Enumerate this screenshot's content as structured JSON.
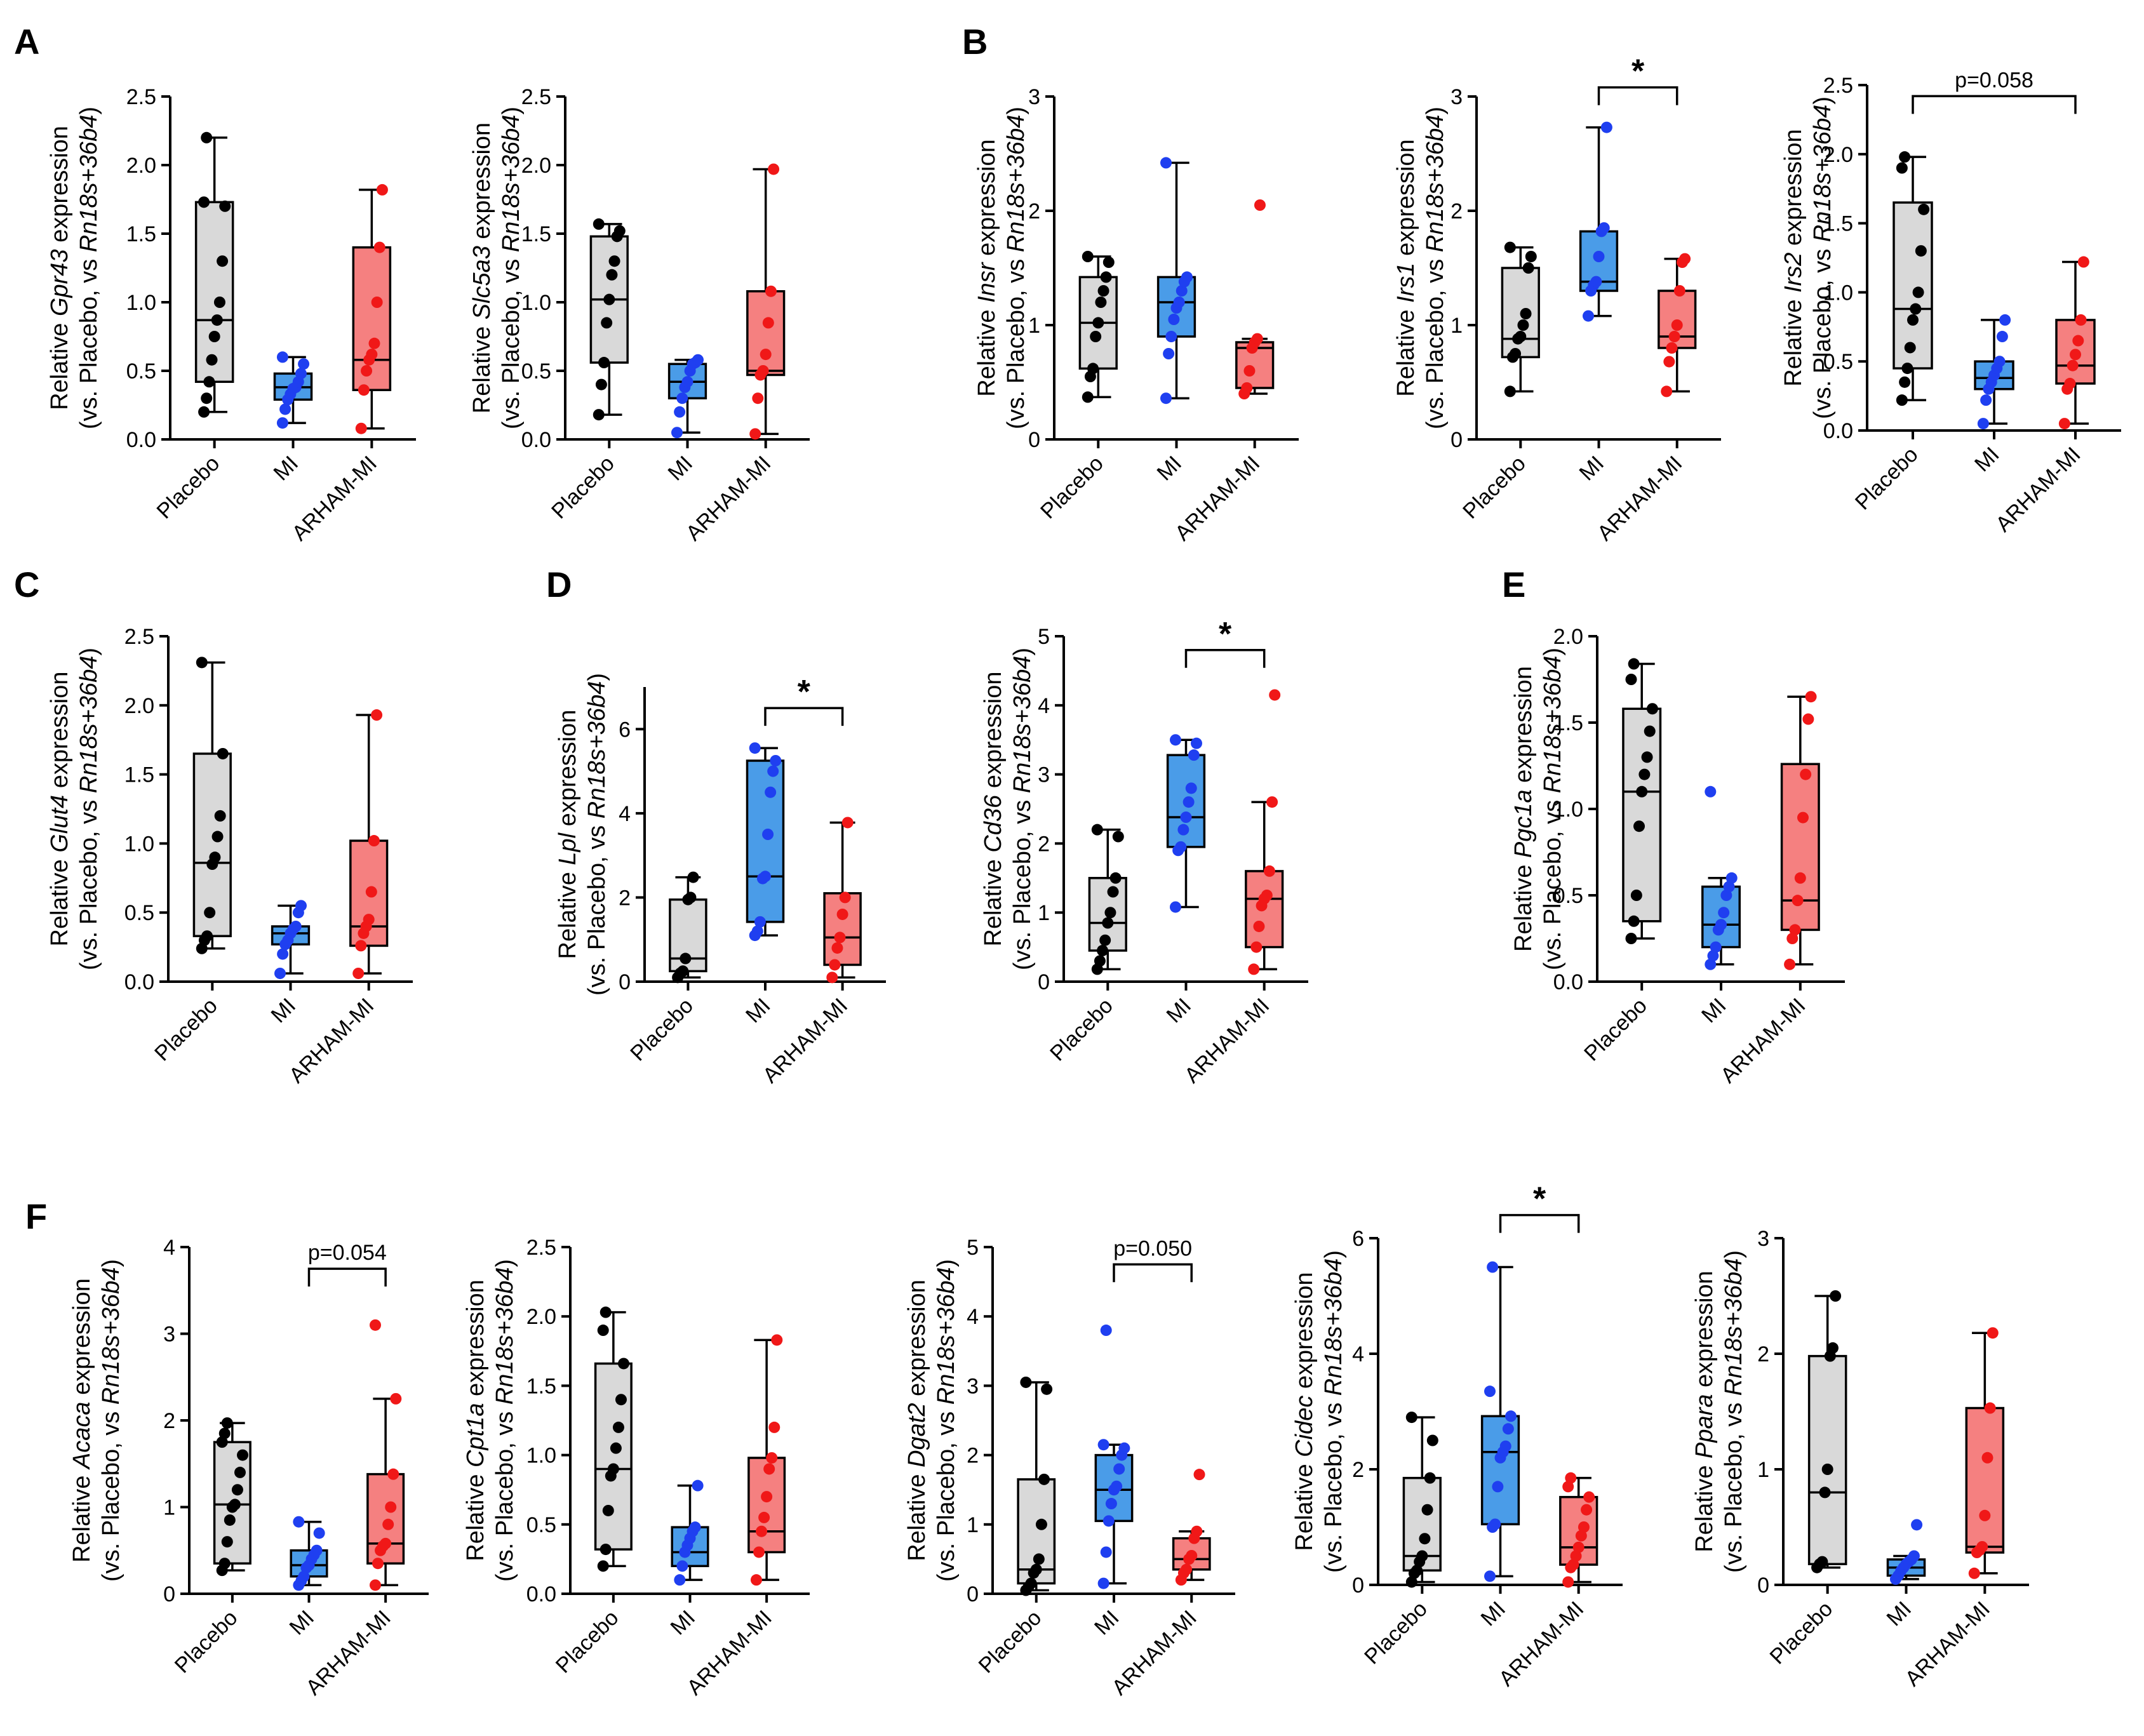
{
  "groups": [
    "Placebo",
    "MI",
    "ARHAM-MI"
  ],
  "colors": {
    "Placebo": "#000000",
    "MI": "#1f3ff0",
    "ARHAM-MI": "#f01818",
    "box_Placebo": "#d9d9d9",
    "box_MI": "#4a9ce8",
    "box_ARHAM-MI": "#f58080"
  },
  "ylabel_line1_prefix": "Relative ",
  "ylabel_line1_suffix": " expression",
  "ylabel_line2_prefix": "(vs. Placebo, vs ",
  "ylabel_line2_italic": "Rn18s+36b4",
  "ylabel_line2_suffix": ")",
  "chart_data": [
    {
      "panel": "A",
      "type": "box",
      "gene": "Gpr43",
      "ylim": [
        0,
        2.5
      ],
      "yticks": [
        "0.0",
        "0.5",
        "1.0",
        "1.5",
        "2.0",
        "2.5"
      ],
      "boxes": [
        {
          "min": 0.2,
          "q1": 0.42,
          "median": 0.87,
          "q3": 1.73,
          "max": 2.2
        },
        {
          "min": 0.12,
          "q1": 0.29,
          "median": 0.38,
          "q3": 0.48,
          "max": 0.6
        },
        {
          "min": 0.08,
          "q1": 0.36,
          "median": 0.58,
          "q3": 1.4,
          "max": 1.82
        }
      ],
      "points": [
        [
          0.2,
          0.3,
          0.42,
          0.58,
          0.75,
          0.87,
          1.0,
          1.3,
          1.7,
          1.73,
          2.2
        ],
        [
          0.12,
          0.22,
          0.29,
          0.33,
          0.37,
          0.38,
          0.42,
          0.48,
          0.55,
          0.6
        ],
        [
          0.08,
          0.36,
          0.5,
          0.58,
          0.62,
          0.7,
          1.0,
          1.4,
          1.82
        ]
      ],
      "sig": null
    },
    {
      "panel": "",
      "type": "box",
      "gene": "Slc5a3",
      "ylim": [
        0,
        2.5
      ],
      "yticks": [
        "0.0",
        "0.5",
        "1.0",
        "1.5",
        "2.0",
        "2.5"
      ],
      "boxes": [
        {
          "min": 0.18,
          "q1": 0.56,
          "median": 1.02,
          "q3": 1.48,
          "max": 1.57
        },
        {
          "min": 0.05,
          "q1": 0.3,
          "median": 0.42,
          "q3": 0.55,
          "max": 0.58
        },
        {
          "min": 0.04,
          "q1": 0.47,
          "median": 0.5,
          "q3": 1.08,
          "max": 1.97
        }
      ],
      "points": [
        [
          0.18,
          0.4,
          0.56,
          0.85,
          1.02,
          1.2,
          1.3,
          1.48,
          1.52,
          1.57
        ],
        [
          0.05,
          0.2,
          0.3,
          0.38,
          0.42,
          0.5,
          0.55,
          0.56,
          0.58
        ],
        [
          0.04,
          0.3,
          0.47,
          0.5,
          0.62,
          0.85,
          1.08,
          1.97
        ]
      ],
      "sig": null
    },
    {
      "panel": "B",
      "type": "box",
      "gene": "Insr",
      "ylim": [
        0,
        3
      ],
      "yticks": [
        "0",
        "1",
        "2",
        "3"
      ],
      "boxes": [
        {
          "min": 0.37,
          "q1": 0.62,
          "median": 1.02,
          "q3": 1.42,
          "max": 1.6
        },
        {
          "min": 0.36,
          "q1": 0.9,
          "median": 1.2,
          "q3": 1.42,
          "max": 2.42
        },
        {
          "min": 0.4,
          "q1": 0.45,
          "median": 0.8,
          "q3": 0.85,
          "max": 0.88
        }
      ],
      "points": [
        [
          0.37,
          0.55,
          0.62,
          0.9,
          1.02,
          1.2,
          1.3,
          1.42,
          1.55,
          1.6
        ],
        [
          0.36,
          0.75,
          0.9,
          1.05,
          1.15,
          1.2,
          1.3,
          1.38,
          1.42,
          2.42
        ],
        [
          0.4,
          0.45,
          0.6,
          0.8,
          0.85,
          0.88,
          2.05
        ]
      ],
      "sig": null
    },
    {
      "panel": "",
      "type": "box",
      "gene": "Irs1",
      "ylim": [
        0,
        3
      ],
      "yticks": [
        "0",
        "1",
        "2",
        "3"
      ],
      "boxes": [
        {
          "min": 0.42,
          "q1": 0.72,
          "median": 0.88,
          "q3": 1.5,
          "max": 1.68
        },
        {
          "min": 1.08,
          "q1": 1.3,
          "median": 1.38,
          "q3": 1.82,
          "max": 2.73
        },
        {
          "min": 0.42,
          "q1": 0.8,
          "median": 0.9,
          "q3": 1.3,
          "max": 1.58
        }
      ],
      "points": [
        [
          0.42,
          0.72,
          0.75,
          0.88,
          0.9,
          1.0,
          1.1,
          1.5,
          1.6,
          1.68
        ],
        [
          1.08,
          1.3,
          1.35,
          1.38,
          1.6,
          1.82,
          1.85,
          2.73
        ],
        [
          0.42,
          0.68,
          0.8,
          0.9,
          1.0,
          1.3,
          1.55,
          1.58
        ]
      ],
      "sig": {
        "from": 1,
        "to": 2,
        "label": "*",
        "y": 3.08
      }
    },
    {
      "panel": "",
      "type": "box",
      "gene": "Irs2",
      "ylim": [
        0,
        2.5
      ],
      "yticks": [
        "0.0",
        "0.5",
        "1.0",
        "1.5",
        "2.0",
        "2.5"
      ],
      "boxes": [
        {
          "min": 0.22,
          "q1": 0.45,
          "median": 0.88,
          "q3": 1.65,
          "max": 1.98
        },
        {
          "min": 0.05,
          "q1": 0.3,
          "median": 0.38,
          "q3": 0.5,
          "max": 0.8
        },
        {
          "min": 0.05,
          "q1": 0.34,
          "median": 0.47,
          "q3": 0.8,
          "max": 1.22
        }
      ],
      "points": [
        [
          0.22,
          0.35,
          0.45,
          0.6,
          0.8,
          0.88,
          1.0,
          1.3,
          1.6,
          1.9,
          1.98
        ],
        [
          0.05,
          0.22,
          0.3,
          0.35,
          0.4,
          0.45,
          0.5,
          0.68,
          0.8
        ],
        [
          0.05,
          0.3,
          0.34,
          0.47,
          0.55,
          0.65,
          0.8,
          1.22
        ]
      ],
      "sig": {
        "from": 0,
        "to": 2,
        "label": "p=0.058",
        "y": 2.42
      }
    },
    {
      "panel": "C",
      "type": "box",
      "gene": "Glut4",
      "ylim": [
        0,
        2.5
      ],
      "yticks": [
        "0.0",
        "0.5",
        "1.0",
        "1.5",
        "2.0",
        "2.5"
      ],
      "boxes": [
        {
          "min": 0.24,
          "q1": 0.33,
          "median": 0.86,
          "q3": 1.65,
          "max": 2.31
        },
        {
          "min": 0.06,
          "q1": 0.27,
          "median": 0.35,
          "q3": 0.4,
          "max": 0.55
        },
        {
          "min": 0.06,
          "q1": 0.26,
          "median": 0.4,
          "q3": 1.02,
          "max": 1.93
        }
      ],
      "points": [
        [
          0.24,
          0.3,
          0.33,
          0.5,
          0.85,
          0.9,
          1.05,
          1.2,
          1.65,
          2.31
        ],
        [
          0.06,
          0.2,
          0.27,
          0.3,
          0.35,
          0.38,
          0.4,
          0.5,
          0.55
        ],
        [
          0.06,
          0.26,
          0.35,
          0.4,
          0.45,
          0.65,
          1.02,
          1.93
        ]
      ],
      "sig": null
    },
    {
      "panel": "D",
      "type": "box",
      "gene": "Lpl",
      "ylim": [
        0,
        7
      ],
      "yticks": [
        "0",
        "2",
        "4",
        "6"
      ],
      "boxes": [
        {
          "min": 0.1,
          "q1": 0.25,
          "median": 0.55,
          "q3": 1.95,
          "max": 2.48
        },
        {
          "min": 1.1,
          "q1": 1.42,
          "median": 2.5,
          "q3": 5.25,
          "max": 5.55
        },
        {
          "min": 0.1,
          "q1": 0.4,
          "median": 1.05,
          "q3": 2.1,
          "max": 3.78
        }
      ],
      "points": [
        [
          0.1,
          0.2,
          0.25,
          0.55,
          1.95,
          2.0,
          2.48
        ],
        [
          1.1,
          1.2,
          1.42,
          2.45,
          2.5,
          3.5,
          4.5,
          5.0,
          5.25,
          5.55
        ],
        [
          0.1,
          0.4,
          0.8,
          1.05,
          1.6,
          2.0,
          3.78
        ]
      ],
      "sig": {
        "from": 1,
        "to": 2,
        "label": "*",
        "y": 6.5
      }
    },
    {
      "panel": "",
      "type": "box",
      "gene": "Cd36",
      "ylim": [
        0,
        5
      ],
      "yticks": [
        "0",
        "1",
        "2",
        "3",
        "4",
        "5"
      ],
      "boxes": [
        {
          "min": 0.18,
          "q1": 0.45,
          "median": 0.85,
          "q3": 1.5,
          "max": 2.2
        },
        {
          "min": 1.08,
          "q1": 1.95,
          "median": 2.38,
          "q3": 3.28,
          "max": 3.5
        },
        {
          "min": 0.18,
          "q1": 0.5,
          "median": 1.2,
          "q3": 1.6,
          "max": 2.6
        }
      ],
      "points": [
        [
          0.18,
          0.3,
          0.45,
          0.6,
          0.85,
          1.0,
          1.3,
          1.5,
          2.1,
          2.2
        ],
        [
          1.08,
          1.9,
          1.95,
          2.2,
          2.38,
          2.6,
          2.8,
          3.28,
          3.45,
          3.5
        ],
        [
          0.18,
          0.5,
          0.8,
          1.1,
          1.2,
          1.25,
          1.6,
          2.6,
          4.15
        ]
      ],
      "sig": {
        "from": 1,
        "to": 2,
        "label": "*",
        "y": 4.8
      }
    },
    {
      "panel": "E",
      "type": "box",
      "gene": "Pgc1a",
      "ylim": [
        0,
        2.0
      ],
      "yticks": [
        "0.0",
        "0.5",
        "1.0",
        "1.5",
        "2.0"
      ],
      "boxes": [
        {
          "min": 0.25,
          "q1": 0.35,
          "median": 1.1,
          "q3": 1.58,
          "max": 1.84
        },
        {
          "min": 0.1,
          "q1": 0.2,
          "median": 0.33,
          "q3": 0.55,
          "max": 0.6
        },
        {
          "min": 0.1,
          "q1": 0.3,
          "median": 0.47,
          "q3": 1.26,
          "max": 1.65
        }
      ],
      "points": [
        [
          0.25,
          0.35,
          0.5,
          0.9,
          1.1,
          1.2,
          1.3,
          1.45,
          1.58,
          1.75,
          1.84
        ],
        [
          0.1,
          0.15,
          0.2,
          0.3,
          0.33,
          0.4,
          0.5,
          0.55,
          0.6,
          1.1
        ],
        [
          0.1,
          0.25,
          0.3,
          0.47,
          0.6,
          0.95,
          1.2,
          1.52,
          1.65
        ]
      ],
      "sig": null
    },
    {
      "panel": "F",
      "type": "box",
      "gene": "Acaca",
      "ylim": [
        0,
        4
      ],
      "yticks": [
        "0",
        "1",
        "2",
        "3",
        "4"
      ],
      "boxes": [
        {
          "min": 0.27,
          "q1": 0.35,
          "median": 1.03,
          "q3": 1.75,
          "max": 1.97
        },
        {
          "min": 0.1,
          "q1": 0.2,
          "median": 0.33,
          "q3": 0.5,
          "max": 0.83
        },
        {
          "min": 0.1,
          "q1": 0.35,
          "median": 0.58,
          "q3": 1.38,
          "max": 2.25
        }
      ],
      "points": [
        [
          0.27,
          0.35,
          0.6,
          0.85,
          1.0,
          1.03,
          1.2,
          1.4,
          1.6,
          1.75,
          1.85,
          1.97
        ],
        [
          0.1,
          0.15,
          0.2,
          0.3,
          0.33,
          0.4,
          0.45,
          0.5,
          0.7,
          0.83
        ],
        [
          0.1,
          0.35,
          0.5,
          0.55,
          0.58,
          0.8,
          1.0,
          1.38,
          2.25,
          3.1
        ]
      ],
      "sig": {
        "from": 1,
        "to": 2,
        "label": "p=0.054",
        "y": 3.75
      }
    },
    {
      "panel": "",
      "type": "box",
      "gene": "Cpt1a",
      "ylim": [
        0,
        2.5
      ],
      "yticks": [
        "0.0",
        "0.5",
        "1.0",
        "1.5",
        "2.0",
        "2.5"
      ],
      "boxes": [
        {
          "min": 0.2,
          "q1": 0.32,
          "median": 0.9,
          "q3": 1.66,
          "max": 2.03
        },
        {
          "min": 0.1,
          "q1": 0.2,
          "median": 0.3,
          "q3": 0.48,
          "max": 0.78
        },
        {
          "min": 0.1,
          "q1": 0.3,
          "median": 0.45,
          "q3": 0.98,
          "max": 1.83
        }
      ],
      "points": [
        [
          0.2,
          0.32,
          0.6,
          0.85,
          0.9,
          1.05,
          1.2,
          1.4,
          1.66,
          1.9,
          2.03
        ],
        [
          0.1,
          0.2,
          0.3,
          0.35,
          0.4,
          0.45,
          0.48,
          0.78
        ],
        [
          0.1,
          0.3,
          0.45,
          0.55,
          0.7,
          0.9,
          0.98,
          1.2,
          1.83
        ]
      ],
      "sig": null
    },
    {
      "panel": "",
      "type": "box",
      "gene": "Dgat2",
      "ylim": [
        0,
        5
      ],
      "yticks": [
        "0",
        "1",
        "2",
        "3",
        "4",
        "5"
      ],
      "boxes": [
        {
          "min": 0.05,
          "q1": 0.15,
          "median": 0.35,
          "q3": 1.65,
          "max": 3.05
        },
        {
          "min": 0.15,
          "q1": 1.05,
          "median": 1.5,
          "q3": 2.0,
          "max": 2.15
        },
        {
          "min": 0.2,
          "q1": 0.35,
          "median": 0.5,
          "q3": 0.8,
          "max": 0.9
        }
      ],
      "points": [
        [
          0.05,
          0.1,
          0.15,
          0.3,
          0.35,
          0.5,
          1.0,
          1.65,
          2.95,
          3.05
        ],
        [
          0.15,
          0.6,
          1.05,
          1.3,
          1.5,
          1.55,
          1.8,
          2.0,
          2.1,
          2.15,
          3.8
        ],
        [
          0.2,
          0.3,
          0.35,
          0.5,
          0.55,
          0.8,
          0.9,
          1.72
        ]
      ],
      "sig": {
        "from": 1,
        "to": 2,
        "label": "p=0.050",
        "y": 4.75
      }
    },
    {
      "panel": "",
      "type": "box",
      "gene": "Cidec",
      "ylim": [
        0,
        6
      ],
      "yticks": [
        "0",
        "2",
        "4",
        "6"
      ],
      "boxes": [
        {
          "min": 0.05,
          "q1": 0.25,
          "median": 0.5,
          "q3": 1.85,
          "max": 2.9
        },
        {
          "min": 0.15,
          "q1": 1.05,
          "median": 2.3,
          "q3": 2.92,
          "max": 5.5
        },
        {
          "min": 0.05,
          "q1": 0.35,
          "median": 0.65,
          "q3": 1.52,
          "max": 1.85
        }
      ],
      "points": [
        [
          0.05,
          0.2,
          0.25,
          0.4,
          0.5,
          0.8,
          1.3,
          1.85,
          2.5,
          2.9
        ],
        [
          0.15,
          1.0,
          1.05,
          1.7,
          2.2,
          2.3,
          2.4,
          2.7,
          2.92,
          3.35,
          5.5
        ],
        [
          0.05,
          0.3,
          0.35,
          0.5,
          0.65,
          0.85,
          1.0,
          1.3,
          1.52,
          1.7,
          1.85
        ]
      ],
      "sig": {
        "from": 1,
        "to": 2,
        "label": "*",
        "y": 6.4
      }
    },
    {
      "panel": "",
      "type": "box",
      "gene": "Ppara",
      "ylim": [
        0,
        3
      ],
      "yticks": [
        "0",
        "1",
        "2",
        "3"
      ],
      "boxes": [
        {
          "min": 0.15,
          "q1": 0.18,
          "median": 0.8,
          "q3": 1.98,
          "max": 2.5
        },
        {
          "min": 0.05,
          "q1": 0.08,
          "median": 0.15,
          "q3": 0.22,
          "max": 0.25
        },
        {
          "min": 0.1,
          "q1": 0.28,
          "median": 0.33,
          "q3": 1.53,
          "max": 2.18
        }
      ],
      "points": [
        [
          0.15,
          0.18,
          0.2,
          0.8,
          1.0,
          1.98,
          2.05,
          2.5
        ],
        [
          0.05,
          0.08,
          0.12,
          0.15,
          0.18,
          0.2,
          0.22,
          0.25,
          0.52
        ],
        [
          0.1,
          0.28,
          0.3,
          0.33,
          0.6,
          1.1,
          1.53,
          2.18
        ]
      ],
      "sig": null
    }
  ]
}
